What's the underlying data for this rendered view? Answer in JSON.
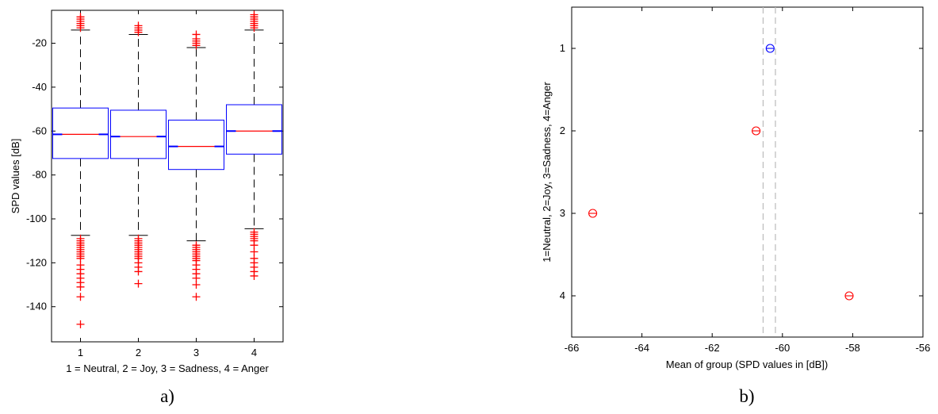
{
  "chart_data": [
    {
      "type": "box",
      "caption": "a)",
      "xlabel": "1 = Neutral, 2 = Joy, 3 = Sadness, 4 = Anger",
      "ylabel": "SPD values [dB]",
      "categories": [
        "1",
        "2",
        "3",
        "4"
      ],
      "ylim": [
        -156,
        -5
      ],
      "yticks": [
        -20,
        -40,
        -60,
        -80,
        -100,
        -120,
        -140
      ],
      "grid": false,
      "colors": {
        "box": "#0000ff",
        "median": "#ff0000",
        "outlier": "#ff0000",
        "whisker": "#000000"
      },
      "boxes": [
        {
          "category": "1",
          "q1": -72.5,
          "median": -61.5,
          "q3": -49.5,
          "whisker_low": -107.5,
          "whisker_high": -14,
          "outliers_high": [
            -13,
            -12,
            -11,
            -10,
            -9,
            -8
          ],
          "outliers_low": [
            -109,
            -110,
            -111,
            -112,
            -113,
            -114,
            -115,
            -116,
            -117,
            -118,
            -121,
            -123,
            -125,
            -127,
            -129,
            -131,
            -135.5,
            -148
          ]
        },
        {
          "category": "2",
          "q1": -72.5,
          "median": -62.5,
          "q3": -50.5,
          "whisker_low": -107.5,
          "whisker_high": -16,
          "outliers_high": [
            -15,
            -14,
            -13,
            -12
          ],
          "outliers_low": [
            -109,
            -110,
            -111,
            -112,
            -113,
            -114,
            -115,
            -116,
            -117,
            -118,
            -120,
            -122,
            -124,
            -129.5
          ]
        },
        {
          "category": "3",
          "q1": -77.5,
          "median": -67,
          "q3": -55,
          "whisker_low": -110,
          "whisker_high": -22,
          "outliers_high": [
            -21,
            -20,
            -19,
            -18,
            -16
          ],
          "outliers_low": [
            -112,
            -113,
            -114,
            -115,
            -116,
            -117,
            -118,
            -119,
            -121,
            -123,
            -125,
            -127,
            -130,
            -135.5
          ]
        },
        {
          "category": "4",
          "q1": -70.5,
          "median": -60,
          "q3": -48,
          "whisker_low": -104.5,
          "whisker_high": -14,
          "outliers_high": [
            -13,
            -12,
            -11,
            -10,
            -9,
            -8,
            -7
          ],
          "outliers_low": [
            -106,
            -107,
            -108,
            -109,
            -110,
            -112,
            -115,
            -118,
            -120,
            -122,
            -124,
            -126
          ]
        }
      ]
    },
    {
      "type": "scatter",
      "caption": "b)",
      "xlabel": "Mean of group (SPD values in [dB])",
      "ylabel": "1=Neutral, 2=Joy, 3=Sadness, 4=Anger",
      "xlim": [
        -66,
        -56
      ],
      "xticks": [
        -66,
        -64,
        -62,
        -60,
        -58,
        -56
      ],
      "ylim": [
        0.5,
        4.5
      ],
      "yticks": [
        1,
        2,
        3,
        4
      ],
      "y_reversed": true,
      "grid": false,
      "reference_lines_x": [
        -60.55,
        -60.2
      ],
      "points": [
        {
          "x": -60.35,
          "y": 1,
          "color": "#0000ff"
        },
        {
          "x": -60.75,
          "y": 2,
          "color": "#ff0000"
        },
        {
          "x": -65.4,
          "y": 3,
          "color": "#ff0000"
        },
        {
          "x": -58.1,
          "y": 4,
          "color": "#ff0000"
        }
      ]
    }
  ]
}
